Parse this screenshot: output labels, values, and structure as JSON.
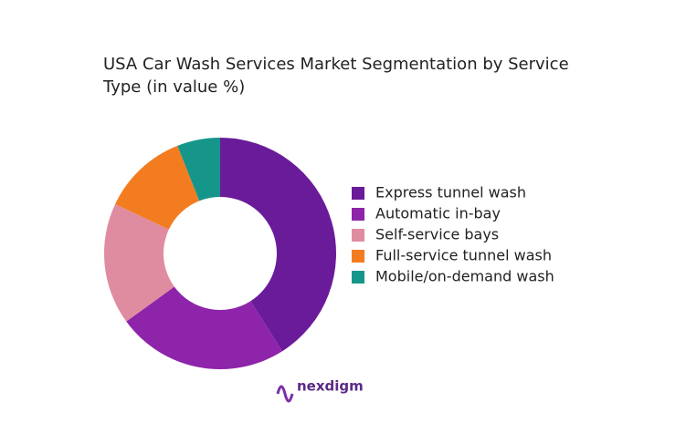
{
  "chart_data": {
    "type": "donut",
    "title": "USA Car Wash Services Market Segmentation by Service Type (in value %)",
    "categories": [
      "Express tunnel wash",
      "Automatic in-bay",
      "Self-service bays",
      "Full-service tunnel wash",
      "Mobile/on-demand wash"
    ],
    "values": [
      41,
      24,
      17,
      12,
      6
    ],
    "colors": [
      "#6a1b9a",
      "#8e24aa",
      "#e08ca0",
      "#f47c20",
      "#16968a"
    ],
    "legend": "right"
  },
  "logo": "nexdigm"
}
